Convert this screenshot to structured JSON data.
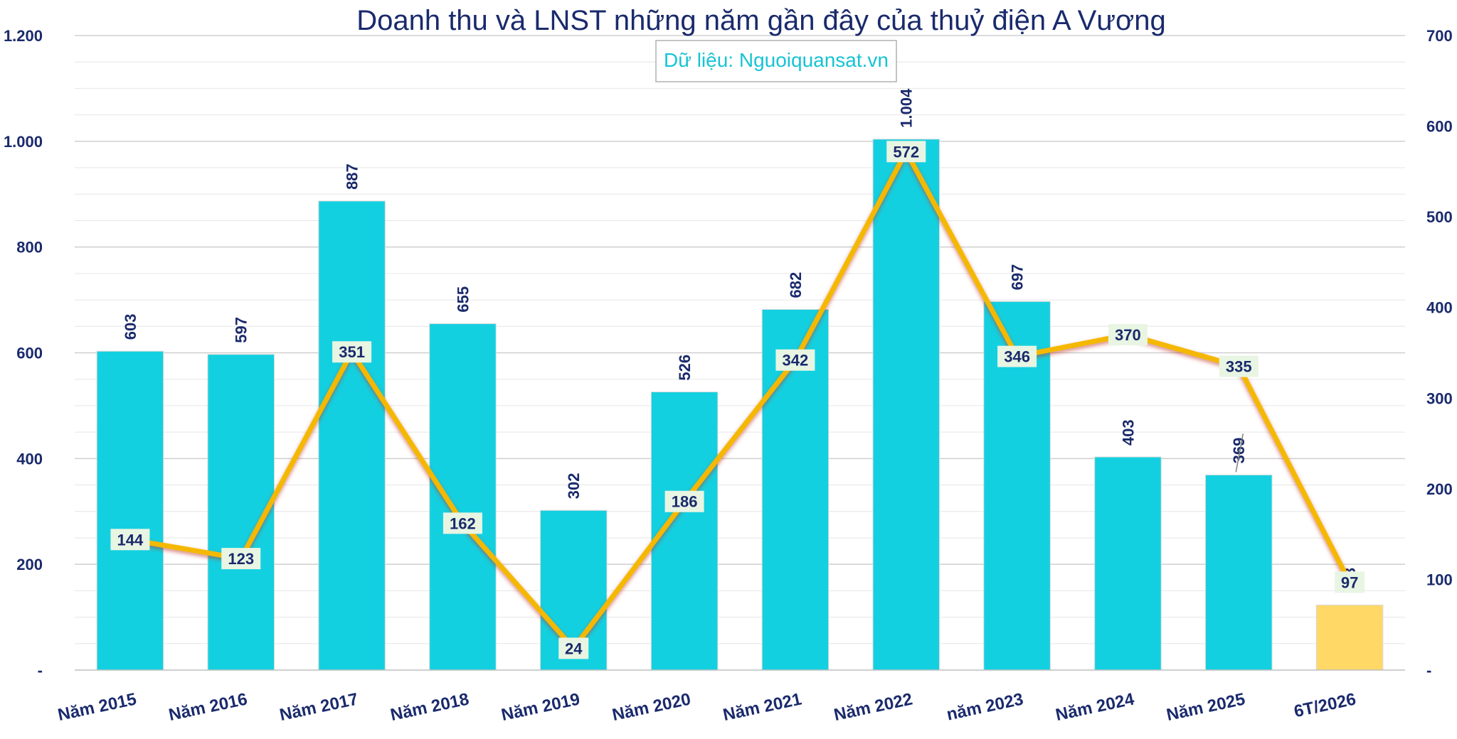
{
  "chart_data": {
    "type": "bar",
    "title": "Doanh thu và LNST những năm gần đây của thuỷ điện A Vương",
    "source": "Dữ liệu: Nguoiquansat.vn",
    "categories": [
      "Năm 2015",
      "Năm 2016",
      "Năm 2017",
      "Năm 2018",
      "Năm 2019",
      "Năm 2020",
      "Năm 2021",
      "Năm 2022",
      "năm 2023",
      "Năm 2024",
      "Năm 2025",
      "6T/2026"
    ],
    "series": [
      {
        "type": "bar",
        "axis": "left",
        "values": [
          603,
          597,
          887,
          655,
          302,
          526,
          682,
          1004,
          697,
          403,
          369,
          123
        ],
        "labels": [
          "603",
          "597",
          "887",
          "655",
          "302",
          "526",
          "682",
          "1.004",
          "697",
          "403",
          "369",
          "123"
        ],
        "color": "#13d0e0",
        "highlight_color": "#ffd866",
        "highlight_index": 11
      },
      {
        "type": "line",
        "axis": "right",
        "values": [
          144,
          123,
          351,
          162,
          24,
          186,
          342,
          572,
          346,
          370,
          335,
          97
        ],
        "labels": [
          "144",
          "123",
          "351",
          "162",
          "24",
          "186",
          "342",
          "572",
          "346",
          "370",
          "335",
          "97"
        ],
        "color": "#f5b800"
      }
    ],
    "left_axis": {
      "min": 0,
      "max": 1200,
      "ticks": [
        0,
        200,
        400,
        600,
        800,
        1000,
        1200
      ],
      "tick_labels": [
        "-",
        "200",
        "400",
        "600",
        "800",
        "1.000",
        "1.200"
      ]
    },
    "right_axis": {
      "min": 0,
      "max": 700,
      "ticks": [
        0,
        100,
        200,
        300,
        400,
        500,
        600,
        700
      ],
      "tick_labels": [
        "-",
        "100",
        "200",
        "300",
        "400",
        "500",
        "600",
        "700"
      ]
    },
    "grid": true
  }
}
